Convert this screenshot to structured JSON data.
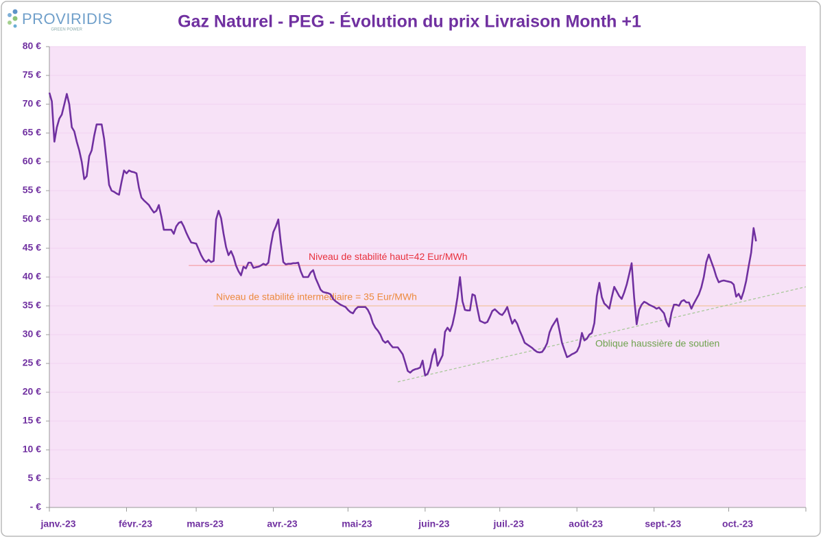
{
  "logo": {
    "name": "PROVIRIDIS",
    "tagline": "GREEN POWER"
  },
  "chart_data": {
    "type": "line",
    "title": "Gaz Naturel - PEG - Évolution du prix Livraison Month +1",
    "color": "#7030a0",
    "grid": true,
    "ylim": [
      0,
      80
    ],
    "yticks": [
      {
        "value": 0,
        "label": "- €"
      },
      {
        "value": 5,
        "label": "5 €"
      },
      {
        "value": 10,
        "label": "10 €"
      },
      {
        "value": 15,
        "label": "15 €"
      },
      {
        "value": 20,
        "label": "20 €"
      },
      {
        "value": 25,
        "label": "25 €"
      },
      {
        "value": 30,
        "label": "30 €"
      },
      {
        "value": 35,
        "label": "35 €"
      },
      {
        "value": 40,
        "label": "40 €"
      },
      {
        "value": 45,
        "label": "45 €"
      },
      {
        "value": 50,
        "label": "50 €"
      },
      {
        "value": 55,
        "label": "55 €"
      },
      {
        "value": 60,
        "label": "60 €"
      },
      {
        "value": 65,
        "label": "65 €"
      },
      {
        "value": 70,
        "label": "70 €"
      },
      {
        "value": 75,
        "label": "75 €"
      },
      {
        "value": 80,
        "label": "80 €"
      }
    ],
    "categories": [
      "janv.-23",
      null,
      null,
      null,
      null,
      null,
      null,
      null,
      null,
      null,
      null,
      null,
      null,
      null,
      null,
      null,
      null,
      null,
      null,
      null,
      null,
      null,
      null,
      null,
      null,
      null,
      null,
      null,
      null,
      null,
      null,
      "févr.-23",
      null,
      null,
      null,
      null,
      null,
      null,
      null,
      null,
      null,
      null,
      null,
      null,
      null,
      null,
      null,
      null,
      null,
      null,
      null,
      null,
      null,
      null,
      null,
      null,
      null,
      null,
      null,
      "mars-23",
      null,
      null,
      null,
      null,
      null,
      null,
      null,
      null,
      null,
      null,
      null,
      null,
      null,
      null,
      null,
      null,
      null,
      null,
      null,
      null,
      null,
      null,
      null,
      null,
      null,
      null,
      null,
      null,
      null,
      null,
      "avr.-23",
      null,
      null,
      null,
      null,
      null,
      null,
      null,
      null,
      null,
      null,
      null,
      null,
      null,
      null,
      null,
      null,
      null,
      null,
      null,
      null,
      null,
      null,
      null,
      null,
      null,
      null,
      null,
      null,
      null,
      "mai-23",
      null,
      null,
      null,
      null,
      null,
      null,
      null,
      null,
      null,
      null,
      null,
      null,
      null,
      null,
      null,
      null,
      null,
      null,
      null,
      null,
      null,
      null,
      null,
      null,
      null,
      null,
      null,
      null,
      null,
      null,
      "juin-23",
      null,
      null,
      null,
      null,
      null,
      null,
      null,
      null,
      null,
      null,
      null,
      null,
      null,
      null,
      null,
      null,
      null,
      null,
      null,
      null,
      null,
      null,
      null,
      null,
      null,
      null,
      null,
      null,
      null,
      "juil.-23",
      null,
      null,
      null,
      null,
      null,
      null,
      null,
      null,
      null,
      null,
      null,
      null,
      null,
      null,
      null,
      null,
      null,
      null,
      null,
      null,
      null,
      null,
      null,
      null,
      null,
      null,
      null,
      null,
      null,
      null,
      "août-23",
      null,
      null,
      null,
      null,
      null,
      null,
      null,
      null,
      null,
      null,
      null,
      null,
      null,
      null,
      null,
      null,
      null,
      null,
      null,
      null,
      null,
      null,
      null,
      null,
      null,
      null,
      null,
      null,
      null,
      null,
      "sept.-23",
      null,
      null,
      null,
      null,
      null,
      null,
      null,
      null,
      null,
      null,
      null,
      null,
      null,
      null,
      null,
      null,
      null,
      null,
      null,
      null,
      null,
      null,
      null,
      null,
      null,
      null,
      null,
      null,
      null,
      "oct.-23",
      null,
      null,
      null,
      null,
      null,
      null,
      null,
      null,
      null,
      null,
      null,
      null,
      null,
      null,
      null,
      null,
      null,
      null,
      null,
      null,
      null,
      null,
      null,
      null,
      null,
      null,
      null,
      null,
      null,
      null,
      null
    ],
    "values": [
      72,
      70.5,
      63.5,
      66,
      67.5,
      68.2,
      70,
      71.8,
      70,
      66,
      65.3,
      63.5,
      62,
      60,
      57,
      57.5,
      61,
      62,
      64.5,
      66.5,
      66.5,
      66.5,
      64,
      60,
      56,
      55,
      54.8,
      54.5,
      54.3,
      56.5,
      58.5,
      58,
      58.5,
      58.3,
      58.2,
      58,
      55.5,
      53.8,
      53.3,
      52.9,
      52.5,
      51.8,
      51.2,
      51.5,
      52.5,
      50.5,
      48.2,
      48.2,
      48.2,
      48.2,
      47.5,
      48.8,
      49.4,
      49.6,
      48.8,
      47.7,
      46.8,
      46,
      45.9,
      45.8,
      44.8,
      43.8,
      43,
      42.6,
      43,
      42.6,
      42.8,
      50,
      51.5,
      50.2,
      47.5,
      45.2,
      43.8,
      44.5,
      43.5,
      42,
      41,
      40.3,
      41.8,
      41.5,
      42.5,
      42.5,
      41.6,
      41.7,
      41.8,
      42,
      42.3,
      42.1,
      42.5,
      45.5,
      47.8,
      48.8,
      50,
      46,
      42.6,
      42.2,
      42.3,
      42.3,
      42.4,
      42.4,
      42.5,
      41,
      40,
      40,
      40,
      40.8,
      41.2,
      39.8,
      38.8,
      37.8,
      37.4,
      37.3,
      37.2,
      37,
      36.2,
      35.8,
      35.5,
      35.2,
      35,
      34.8,
      34.3,
      33.9,
      33.7,
      34.4,
      34.8,
      34.8,
      34.8,
      34.8,
      34.3,
      33.4,
      32,
      31.2,
      30.7,
      30,
      29,
      28.6,
      28.9,
      28.3,
      27.8,
      27.8,
      27.8,
      27.2,
      26.6,
      25.2,
      23.7,
      23.4,
      23.8,
      24,
      24.1,
      24.3,
      25.5,
      22.9,
      23.2,
      24.3,
      26.4,
      27.5,
      24.6,
      25.5,
      26.4,
      30.5,
      31.2,
      30.6,
      31.8,
      33.8,
      36.5,
      40,
      35.8,
      34.3,
      34.2,
      34.2,
      37,
      36.8,
      34.5,
      32.4,
      32.2,
      32,
      32.2,
      33.1,
      34.1,
      34.4,
      34,
      33.6,
      33.4,
      34,
      34.8,
      33.3,
      31.9,
      32.6,
      31.9,
      30.7,
      29.7,
      28.6,
      28.3,
      28,
      27.7,
      27.3,
      27,
      26.9,
      27,
      27.6,
      28.5,
      30.4,
      31.4,
      32.1,
      32.8,
      30.7,
      28.6,
      27.3,
      26.1,
      26.3,
      26.6,
      26.8,
      27.1,
      28,
      30.3,
      29,
      29.3,
      30,
      30.3,
      32,
      36.7,
      39,
      36.5,
      35.4,
      35,
      34.5,
      36.5,
      38.3,
      37.5,
      36.7,
      36.2,
      37.3,
      38.7,
      40.5,
      42.4,
      36.5,
      31.8,
      34.3,
      35.2,
      35.7,
      35.5,
      35.2,
      35,
      34.8,
      34.5,
      34.7,
      34.2,
      33.7,
      32.2,
      31.4,
      33.8,
      35.2,
      35.2,
      35,
      35.8,
      36,
      35.6,
      35.6,
      34.5,
      35.4,
      36.2,
      37,
      38.2,
      40,
      42.6,
      43.9,
      42.7,
      41.5,
      40.1,
      39.1,
      39.3,
      39.4,
      39.3,
      39.2,
      39.1,
      38.7,
      36.6,
      37.1,
      36.2,
      37.5,
      39.3,
      41.8,
      44.2,
      48.5,
      46.2,
      null,
      null,
      null,
      null,
      null,
      null,
      null,
      null,
      null,
      null,
      null,
      null,
      null,
      null,
      null,
      null,
      null,
      null,
      null,
      null
    ],
    "annotations": [
      {
        "text": "Niveau de stabilité haut=42 Eur/MWh",
        "color": "#e8303c",
        "line_color": "#f4a6ae",
        "x": [
          56,
          304
        ],
        "values": [
          42,
          42
        ]
      },
      {
        "text": "Niveau de stabilité intermédiaire = 35 Eur/MWh",
        "color": "#ec8a3e",
        "line_color": "#f2c49e",
        "x": [
          66,
          304
        ],
        "values": [
          35,
          35
        ]
      },
      {
        "text": "Oblique haussière de soutien",
        "color": "#6fa24e",
        "line_color": "#a9c89a",
        "dashed": true,
        "x": [
          140,
          304
        ],
        "values": [
          21.8,
          38.3
        ]
      }
    ]
  }
}
